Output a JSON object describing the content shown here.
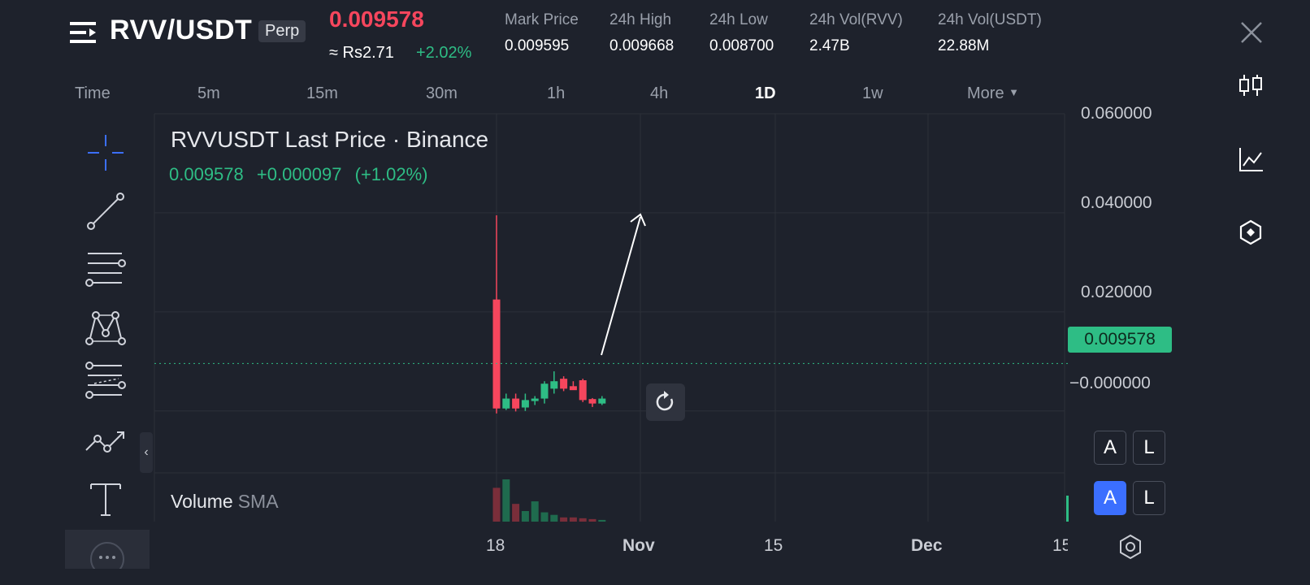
{
  "header": {
    "pair": "RVV/USDT",
    "contract_badge": "Perp",
    "last_price": "0.009578",
    "approx_local": "≈ Rs2.71",
    "change_pct": "+2.02%",
    "stats": [
      {
        "label": "Mark Price",
        "value": "0.009595"
      },
      {
        "label": "24h High",
        "value": "0.009668"
      },
      {
        "label": "24h Low",
        "value": "0.008700"
      },
      {
        "label": "24h Vol(RVV)",
        "value": "2.47B"
      },
      {
        "label": "24h Vol(USDT)",
        "value": "22.88M"
      }
    ]
  },
  "timeframes": {
    "label": "Time",
    "items": [
      "5m",
      "15m",
      "30m",
      "1h",
      "4h",
      "1D",
      "1w",
      "More"
    ],
    "active": "1D"
  },
  "legend": {
    "title": "RVVUSDT Last Price · Binance",
    "price": "0.009578",
    "change_abs": "+0.000097",
    "change_pct": "(+1.02%)"
  },
  "price_axis": {
    "labels": [
      "0.060000",
      "0.040000",
      "0.020000",
      "−0.000000"
    ],
    "current": "0.009578"
  },
  "time_axis": {
    "labels": [
      "18",
      "Nov",
      "15",
      "Dec",
      "15"
    ]
  },
  "volume": {
    "label": "Volume",
    "indicator": "SMA"
  },
  "buttons": {
    "auto": "A",
    "log": "L"
  },
  "icons": {
    "menu": "menu-lines-icon",
    "close": "close-icon",
    "candles": "candlestick-icon",
    "indicators": "line-chart-icon",
    "depth": "hexagon-icon",
    "reset": "reset-icon",
    "settings": "settings-hexagon-icon"
  },
  "colors": {
    "bg": "#1e222c",
    "up": "#2ebd85",
    "down": "#f6465d",
    "accent": "#3b6fff",
    "grid": "#2c3039"
  },
  "chart_data": {
    "type": "candlestick",
    "candles": [
      {
        "o": 0.0225,
        "h": 0.0395,
        "l": -0.0005,
        "c": 0.0005
      },
      {
        "o": 0.0005,
        "h": 0.0035,
        "l": 0.0002,
        "c": 0.0025
      },
      {
        "o": 0.0025,
        "h": 0.0035,
        "l": -0.0001,
        "c": 0.0005
      },
      {
        "o": 0.0007,
        "h": 0.0035,
        "l": 0.0,
        "c": 0.0022
      },
      {
        "o": 0.002,
        "h": 0.003,
        "l": 0.0012,
        "c": 0.0025
      },
      {
        "o": 0.0025,
        "h": 0.006,
        "l": 0.0015,
        "c": 0.0055
      },
      {
        "o": 0.0045,
        "h": 0.008,
        "l": 0.0035,
        "c": 0.006
      },
      {
        "o": 0.0065,
        "h": 0.007,
        "l": 0.004,
        "c": 0.0045
      },
      {
        "o": 0.005,
        "h": 0.006,
        "l": 0.0045,
        "c": 0.0042
      },
      {
        "o": 0.0062,
        "h": 0.0065,
        "l": 0.0018,
        "c": 0.0022
      },
      {
        "o": 0.0024,
        "h": 0.0026,
        "l": 0.0008,
        "c": 0.0015
      },
      {
        "o": 0.0015,
        "h": 0.003,
        "l": 0.0012,
        "c": 0.0025
      }
    ],
    "volumes": [
      {
        "v": 80,
        "up": false
      },
      {
        "v": 100,
        "up": true
      },
      {
        "v": 42,
        "up": false
      },
      {
        "v": 25,
        "up": true
      },
      {
        "v": 48,
        "up": true
      },
      {
        "v": 22,
        "up": true
      },
      {
        "v": 16,
        "up": true
      },
      {
        "v": 10,
        "up": false
      },
      {
        "v": 10,
        "up": false
      },
      {
        "v": 8,
        "up": false
      },
      {
        "v": 6,
        "up": false
      },
      {
        "v": 4,
        "up": true
      }
    ],
    "ylim": [
      -0.0125,
      0.06
    ],
    "grid": true
  }
}
